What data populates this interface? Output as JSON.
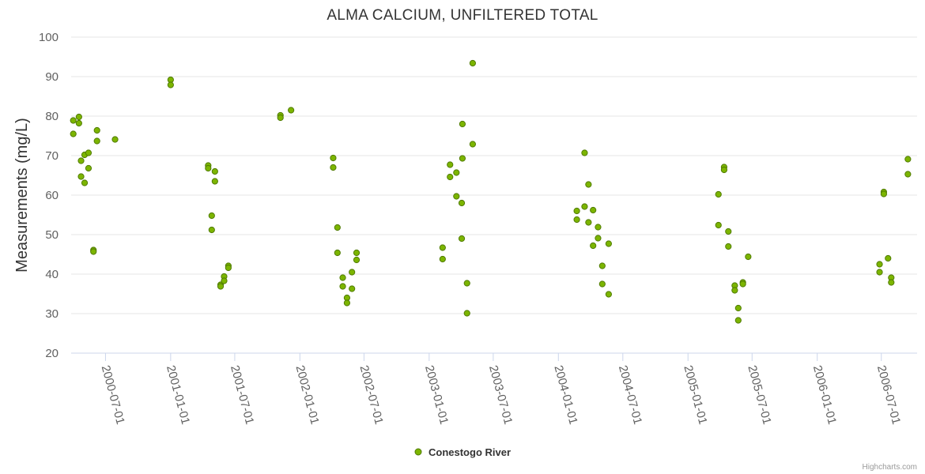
{
  "chart_data": {
    "type": "scatter",
    "title": "ALMA CALCIUM, UNFILTERED TOTAL",
    "ylabel": "Measurements (mg/L)",
    "xlabel": "",
    "ylim": [
      20,
      100
    ],
    "y_ticks": [
      "20",
      "30",
      "40",
      "50",
      "60",
      "70",
      "80",
      "90",
      "100"
    ],
    "x_ticks": [
      "2000-07-01",
      "2001-01-01",
      "2001-07-01",
      "2002-01-01",
      "2002-07-01",
      "2003-01-01",
      "2003-07-01",
      "2004-01-01",
      "2004-07-01",
      "2005-01-01",
      "2005-07-01",
      "2006-01-01",
      "2006-07-01"
    ],
    "x_range": [
      "2000-03-26",
      "2006-10-10"
    ],
    "grid": "horizontal",
    "legend_position": "bottom-center",
    "series": [
      {
        "name": "Conestogo River",
        "color": "#7cb500",
        "points": [
          [
            "2000-04-01",
            78.9
          ],
          [
            "2000-04-01",
            75.5
          ],
          [
            "2000-04-17",
            79.8
          ],
          [
            "2000-04-17",
            78.2
          ],
          [
            "2000-04-23",
            68.7
          ],
          [
            "2000-04-23",
            64.7
          ],
          [
            "2000-05-03",
            70.2
          ],
          [
            "2000-05-03",
            63.1
          ],
          [
            "2000-05-14",
            70.7
          ],
          [
            "2000-05-14",
            66.8
          ],
          [
            "2000-05-28",
            46.1
          ],
          [
            "2000-05-28",
            45.7
          ],
          [
            "2000-06-07",
            76.4
          ],
          [
            "2000-06-07",
            73.7
          ],
          [
            "2000-07-28",
            74.1
          ],
          [
            "2001-01-01",
            89.2
          ],
          [
            "2001-01-01",
            87.9
          ],
          [
            "2001-04-17",
            67.5
          ],
          [
            "2001-04-17",
            66.8
          ],
          [
            "2001-04-27",
            54.8
          ],
          [
            "2001-04-27",
            51.2
          ],
          [
            "2001-05-06",
            66.0
          ],
          [
            "2001-05-06",
            63.5
          ],
          [
            "2001-05-22",
            37.3
          ],
          [
            "2001-05-22",
            36.9
          ],
          [
            "2001-06-01",
            39.4
          ],
          [
            "2001-06-01",
            38.3
          ],
          [
            "2001-06-13",
            42.1
          ],
          [
            "2001-06-13",
            41.6
          ],
          [
            "2001-11-07",
            80.2
          ],
          [
            "2001-11-07",
            79.6
          ],
          [
            "2001-12-07",
            81.5
          ],
          [
            "2002-04-05",
            69.4
          ],
          [
            "2002-04-05",
            67.0
          ],
          [
            "2002-04-17",
            51.8
          ],
          [
            "2002-04-17",
            45.4
          ],
          [
            "2002-05-02",
            39.1
          ],
          [
            "2002-05-02",
            36.9
          ],
          [
            "2002-05-14",
            34.0
          ],
          [
            "2002-05-14",
            32.7
          ],
          [
            "2002-05-28",
            40.5
          ],
          [
            "2002-05-28",
            36.3
          ],
          [
            "2002-06-10",
            45.4
          ],
          [
            "2002-06-10",
            43.6
          ],
          [
            "2003-02-08",
            46.7
          ],
          [
            "2003-02-08",
            43.8
          ],
          [
            "2003-03-01",
            67.7
          ],
          [
            "2003-03-01",
            64.6
          ],
          [
            "2003-03-19",
            65.7
          ],
          [
            "2003-03-19",
            59.7
          ],
          [
            "2003-04-03",
            58.0
          ],
          [
            "2003-04-03",
            49.0
          ],
          [
            "2003-04-05",
            78.0
          ],
          [
            "2003-04-05",
            69.3
          ],
          [
            "2003-04-18",
            37.7
          ],
          [
            "2003-04-18",
            30.1
          ],
          [
            "2003-05-04",
            93.4
          ],
          [
            "2003-05-04",
            72.9
          ],
          [
            "2004-02-22",
            56.0
          ],
          [
            "2004-02-22",
            53.8
          ],
          [
            "2004-03-15",
            70.7
          ],
          [
            "2004-03-15",
            57.1
          ],
          [
            "2004-03-26",
            62.7
          ],
          [
            "2004-03-26",
            53.1
          ],
          [
            "2004-04-08",
            56.2
          ],
          [
            "2004-04-08",
            47.2
          ],
          [
            "2004-04-22",
            51.9
          ],
          [
            "2004-04-22",
            49.1
          ],
          [
            "2004-05-04",
            42.1
          ],
          [
            "2004-05-04",
            37.5
          ],
          [
            "2004-05-22",
            47.7
          ],
          [
            "2004-05-22",
            34.9
          ],
          [
            "2005-03-28",
            60.2
          ],
          [
            "2005-03-28",
            52.4
          ],
          [
            "2005-04-13",
            67.1
          ],
          [
            "2005-04-13",
            66.4
          ],
          [
            "2005-04-25",
            50.8
          ],
          [
            "2005-04-25",
            47.0
          ],
          [
            "2005-05-13",
            37.1
          ],
          [
            "2005-05-13",
            35.9
          ],
          [
            "2005-05-23",
            31.4
          ],
          [
            "2005-05-23",
            28.3
          ],
          [
            "2005-06-05",
            37.9
          ],
          [
            "2005-06-05",
            37.5
          ],
          [
            "2005-06-20",
            44.4
          ],
          [
            "2006-06-26",
            42.5
          ],
          [
            "2006-06-26",
            40.5
          ],
          [
            "2006-07-08",
            60.8
          ],
          [
            "2006-07-08",
            60.3
          ],
          [
            "2006-07-20",
            44.0
          ],
          [
            "2006-07-29",
            39.1
          ],
          [
            "2006-07-29",
            37.9
          ],
          [
            "2006-09-14",
            69.1
          ],
          [
            "2006-09-14",
            65.3
          ]
        ]
      }
    ]
  },
  "credits": "Highcharts.com"
}
